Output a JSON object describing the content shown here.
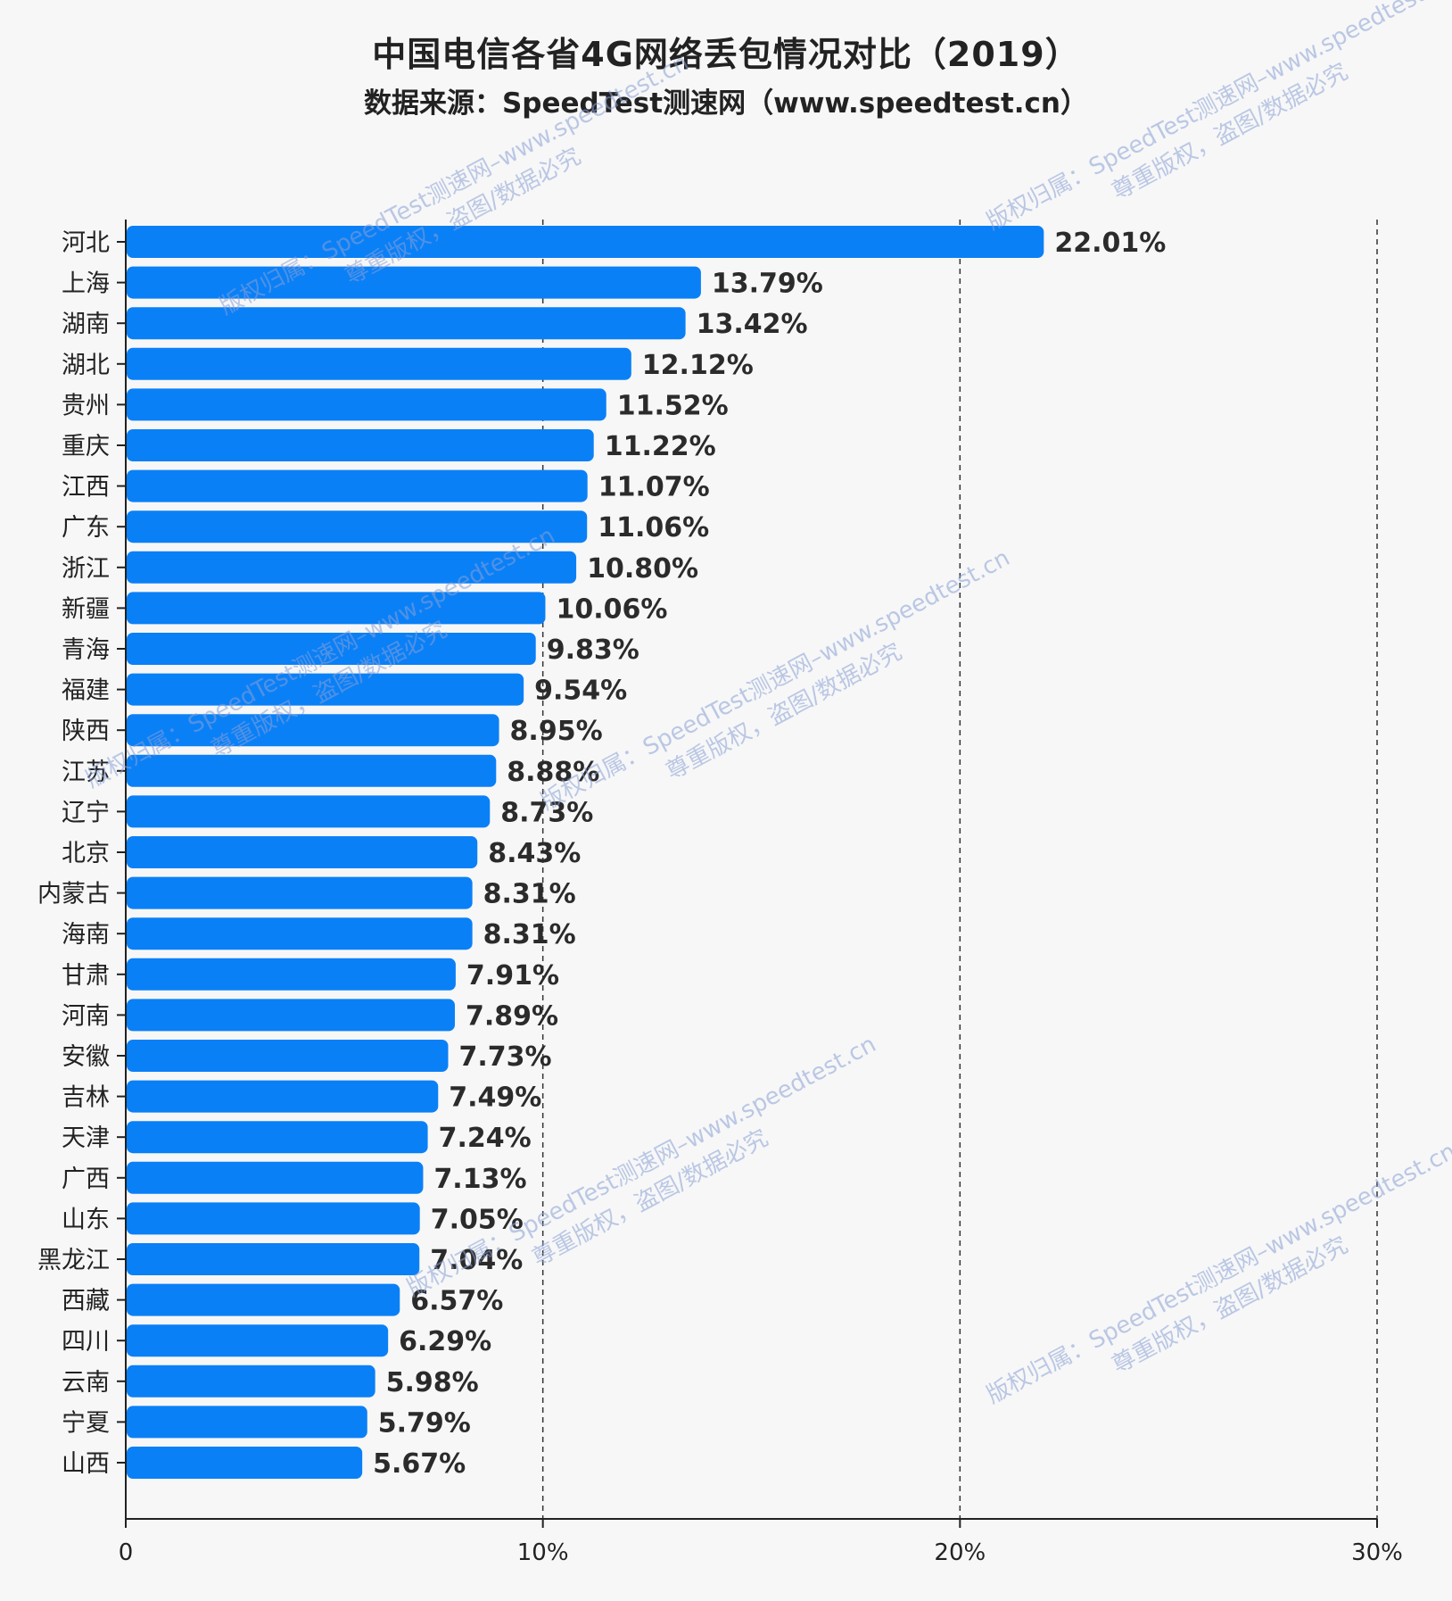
{
  "title": "中国电信各省4G网络丢包情况对比（2019）",
  "subtitle": "数据来源：SpeedTest测速网（www.speedtest.cn）",
  "watermark": {
    "line1": "版权归属：SpeedTest测速网–www.speedtest.cn",
    "line2": "尊重版权，盗图/数据必究",
    "color": "#8aa0d6"
  },
  "colors": {
    "bar": "#0a80f7",
    "axis": "#222222",
    "grid": "#333333"
  },
  "chart_data": {
    "type": "bar",
    "orientation": "horizontal",
    "title": "中国电信各省4G网络丢包情况对比（2019）",
    "subtitle": "数据来源：SpeedTest测速网（www.speedtest.cn）",
    "categories": [
      "河北",
      "上海",
      "湖南",
      "湖北",
      "贵州",
      "重庆",
      "江西",
      "广东",
      "浙江",
      "新疆",
      "青海",
      "福建",
      "陕西",
      "江苏",
      "辽宁",
      "北京",
      "内蒙古",
      "海南",
      "甘肃",
      "河南",
      "安徽",
      "吉林",
      "天津",
      "广西",
      "山东",
      "黑龙江",
      "西藏",
      "四川",
      "云南",
      "宁夏",
      "山西"
    ],
    "values": [
      22.01,
      13.79,
      13.42,
      12.12,
      11.52,
      11.22,
      11.07,
      11.06,
      10.8,
      10.06,
      9.83,
      9.54,
      8.95,
      8.88,
      8.73,
      8.43,
      8.31,
      8.31,
      7.91,
      7.89,
      7.73,
      7.49,
      7.24,
      7.13,
      7.05,
      7.04,
      6.57,
      6.29,
      5.98,
      5.79,
      5.67
    ],
    "value_labels": [
      "22.01%",
      "13.79%",
      "13.42%",
      "12.12%",
      "11.52%",
      "11.22%",
      "11.07%",
      "11.06%",
      "10.80%",
      "10.06%",
      "9.83%",
      "9.54%",
      "8.95%",
      "8.88%",
      "8.73%",
      "8.43%",
      "8.31%",
      "8.31%",
      "7.91%",
      "7.89%",
      "7.73%",
      "7.49%",
      "7.24%",
      "7.13%",
      "7.05%",
      "7.04%",
      "6.57%",
      "6.29%",
      "5.98%",
      "5.79%",
      "5.67%"
    ],
    "xlim": [
      0,
      30
    ],
    "xticks": [
      0,
      10,
      20,
      30
    ],
    "xtick_labels": [
      "0",
      "10%",
      "20%",
      "30%"
    ],
    "grid": "vertical dashed",
    "xlabel": "",
    "ylabel": ""
  }
}
